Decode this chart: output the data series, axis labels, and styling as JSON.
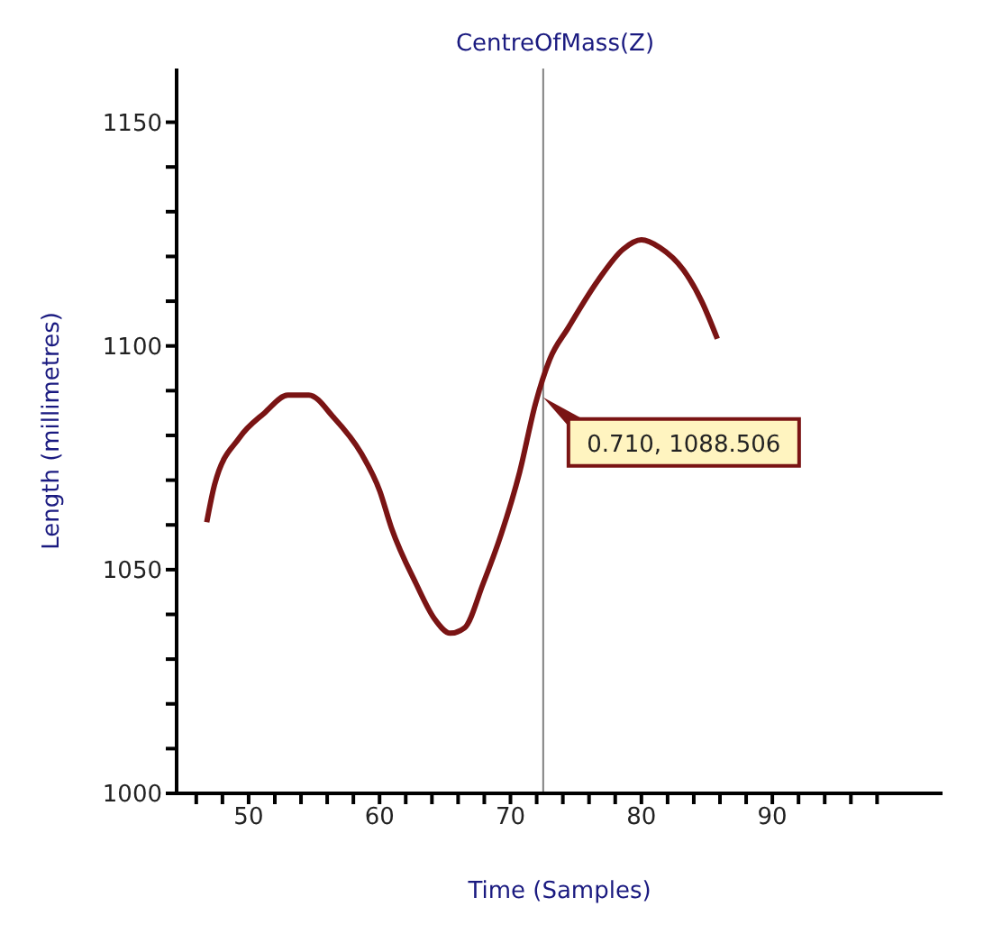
{
  "chart_data": {
    "type": "line",
    "title": "CentreOfMass(Z)",
    "xlabel": "Time (Samples)",
    "ylabel": "Length (millimetres)",
    "x": [
      46.8,
      47.4,
      49.3,
      51.2,
      53,
      54.6,
      56.5,
      58.6,
      60,
      60.9,
      62.8,
      64.2,
      65.4,
      66.5,
      67.9,
      69.3,
      70.7,
      71.9,
      73,
      74.4,
      76.7,
      78.6,
      80,
      81.4,
      83.2,
      84.6,
      85.8
    ],
    "series": [
      {
        "color": "#7a1414",
        "values": [
          1060.6,
          1069,
          1079.5,
          1085,
          1089,
          1089,
          1084,
          1076,
          1067.7,
          1059.4,
          1046.8,
          1039,
          1035.8,
          1037,
          1046.8,
          1058,
          1071.8,
          1087,
          1097,
          1104,
          1114.7,
          1121.6,
          1123.7,
          1122,
          1117,
          1110,
          1101.6
        ]
      }
    ],
    "xlim": [
      44.5,
      103
    ],
    "ylim": [
      1000,
      1162
    ],
    "xticks": [
      {
        "value": 46,
        "label": null
      },
      {
        "value": 48,
        "label": null
      },
      50,
      {
        "value": 52,
        "label": null
      },
      {
        "value": 54,
        "label": null
      },
      {
        "value": 56,
        "label": null
      },
      {
        "value": 58,
        "label": null
      },
      60,
      {
        "value": 62,
        "label": null
      },
      {
        "value": 64,
        "label": null
      },
      {
        "value": 66,
        "label": null
      },
      {
        "value": 68,
        "label": null
      },
      70,
      {
        "value": 72,
        "label": null
      },
      {
        "value": 74,
        "label": null
      },
      {
        "value": 76,
        "label": null
      },
      {
        "value": 78,
        "label": null
      },
      80,
      {
        "value": 82,
        "label": null
      },
      {
        "value": 84,
        "label": null
      },
      {
        "value": 86,
        "label": null
      },
      {
        "value": 88,
        "label": null
      },
      90,
      {
        "value": 92,
        "label": null
      },
      {
        "value": 94,
        "label": null
      },
      {
        "value": 96,
        "label": null
      },
      {
        "value": 98,
        "label": null
      }
    ],
    "yticks": [
      1000,
      {
        "value": 1010,
        "label": null
      },
      {
        "value": 1020,
        "label": null
      },
      {
        "value": 1030,
        "label": null
      },
      {
        "value": 1040,
        "label": null
      },
      1050,
      {
        "value": 1060,
        "label": null
      },
      {
        "value": 1070,
        "label": null
      },
      {
        "value": 1080,
        "label": null
      },
      {
        "value": 1090,
        "label": null
      },
      1100,
      {
        "value": 1110,
        "label": null
      },
      {
        "value": 1120,
        "label": null
      },
      {
        "value": 1130,
        "label": null
      },
      {
        "value": 1140,
        "label": null
      },
      1150
    ],
    "ref_lines": [
      {
        "axis": "x",
        "value": 72.5,
        "color": "#808080"
      }
    ],
    "annotations": [
      {
        "text": "0.710, 1088.506",
        "x": 72.5,
        "y": 1088.506
      }
    ],
    "grid": false,
    "marker": "none",
    "line_style": "solid"
  }
}
